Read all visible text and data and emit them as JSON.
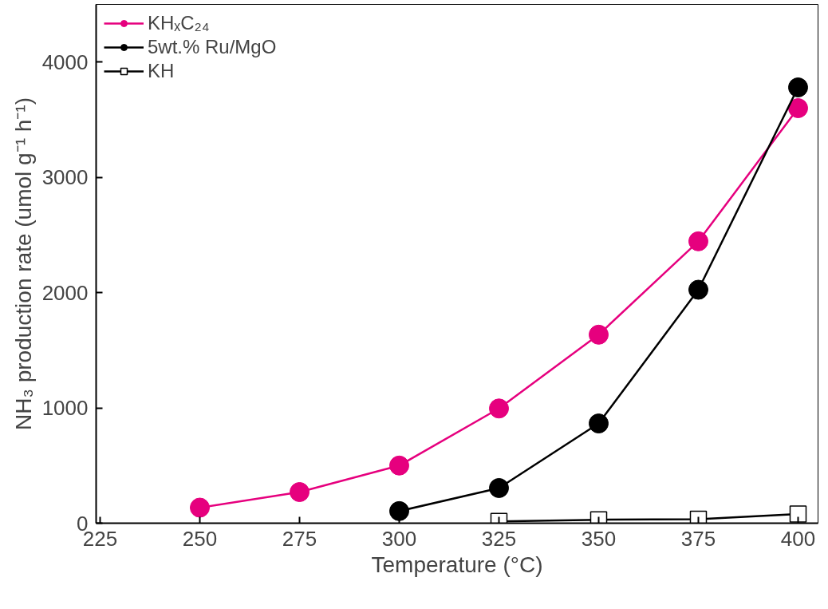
{
  "chart_data": {
    "type": "line",
    "xlabel": "Temperature (°C)",
    "ylabel": "NH₃ production rate (umol g⁻¹ h⁻¹)",
    "xlim": [
      224,
      405
    ],
    "xticks": [
      225,
      250,
      275,
      300,
      325,
      350,
      375,
      400
    ],
    "ylim": [
      0,
      4500
    ],
    "yticks": [
      0,
      1000,
      2000,
      3000,
      4000
    ],
    "grid": false,
    "legend": "top left",
    "line_style": "solid",
    "series": [
      {
        "name": "KHₓC₂₄",
        "color": "#e6007e",
        "marker": "circle",
        "x": [
          250,
          275,
          300,
          325,
          350,
          375,
          400
        ],
        "values": [
          135,
          270,
          500,
          995,
          1635,
          2445,
          3600
        ]
      },
      {
        "name": "5wt.% Ru/MgO",
        "color": "#000000",
        "marker": "circle",
        "x": [
          300,
          325,
          350,
          375,
          400
        ],
        "values": [
          105,
          305,
          865,
          2025,
          3780
        ]
      },
      {
        "name": "KH",
        "color": "#000000",
        "marker": "square",
        "x": [
          325,
          350,
          375,
          400
        ],
        "values": [
          15,
          30,
          35,
          80
        ]
      }
    ]
  }
}
